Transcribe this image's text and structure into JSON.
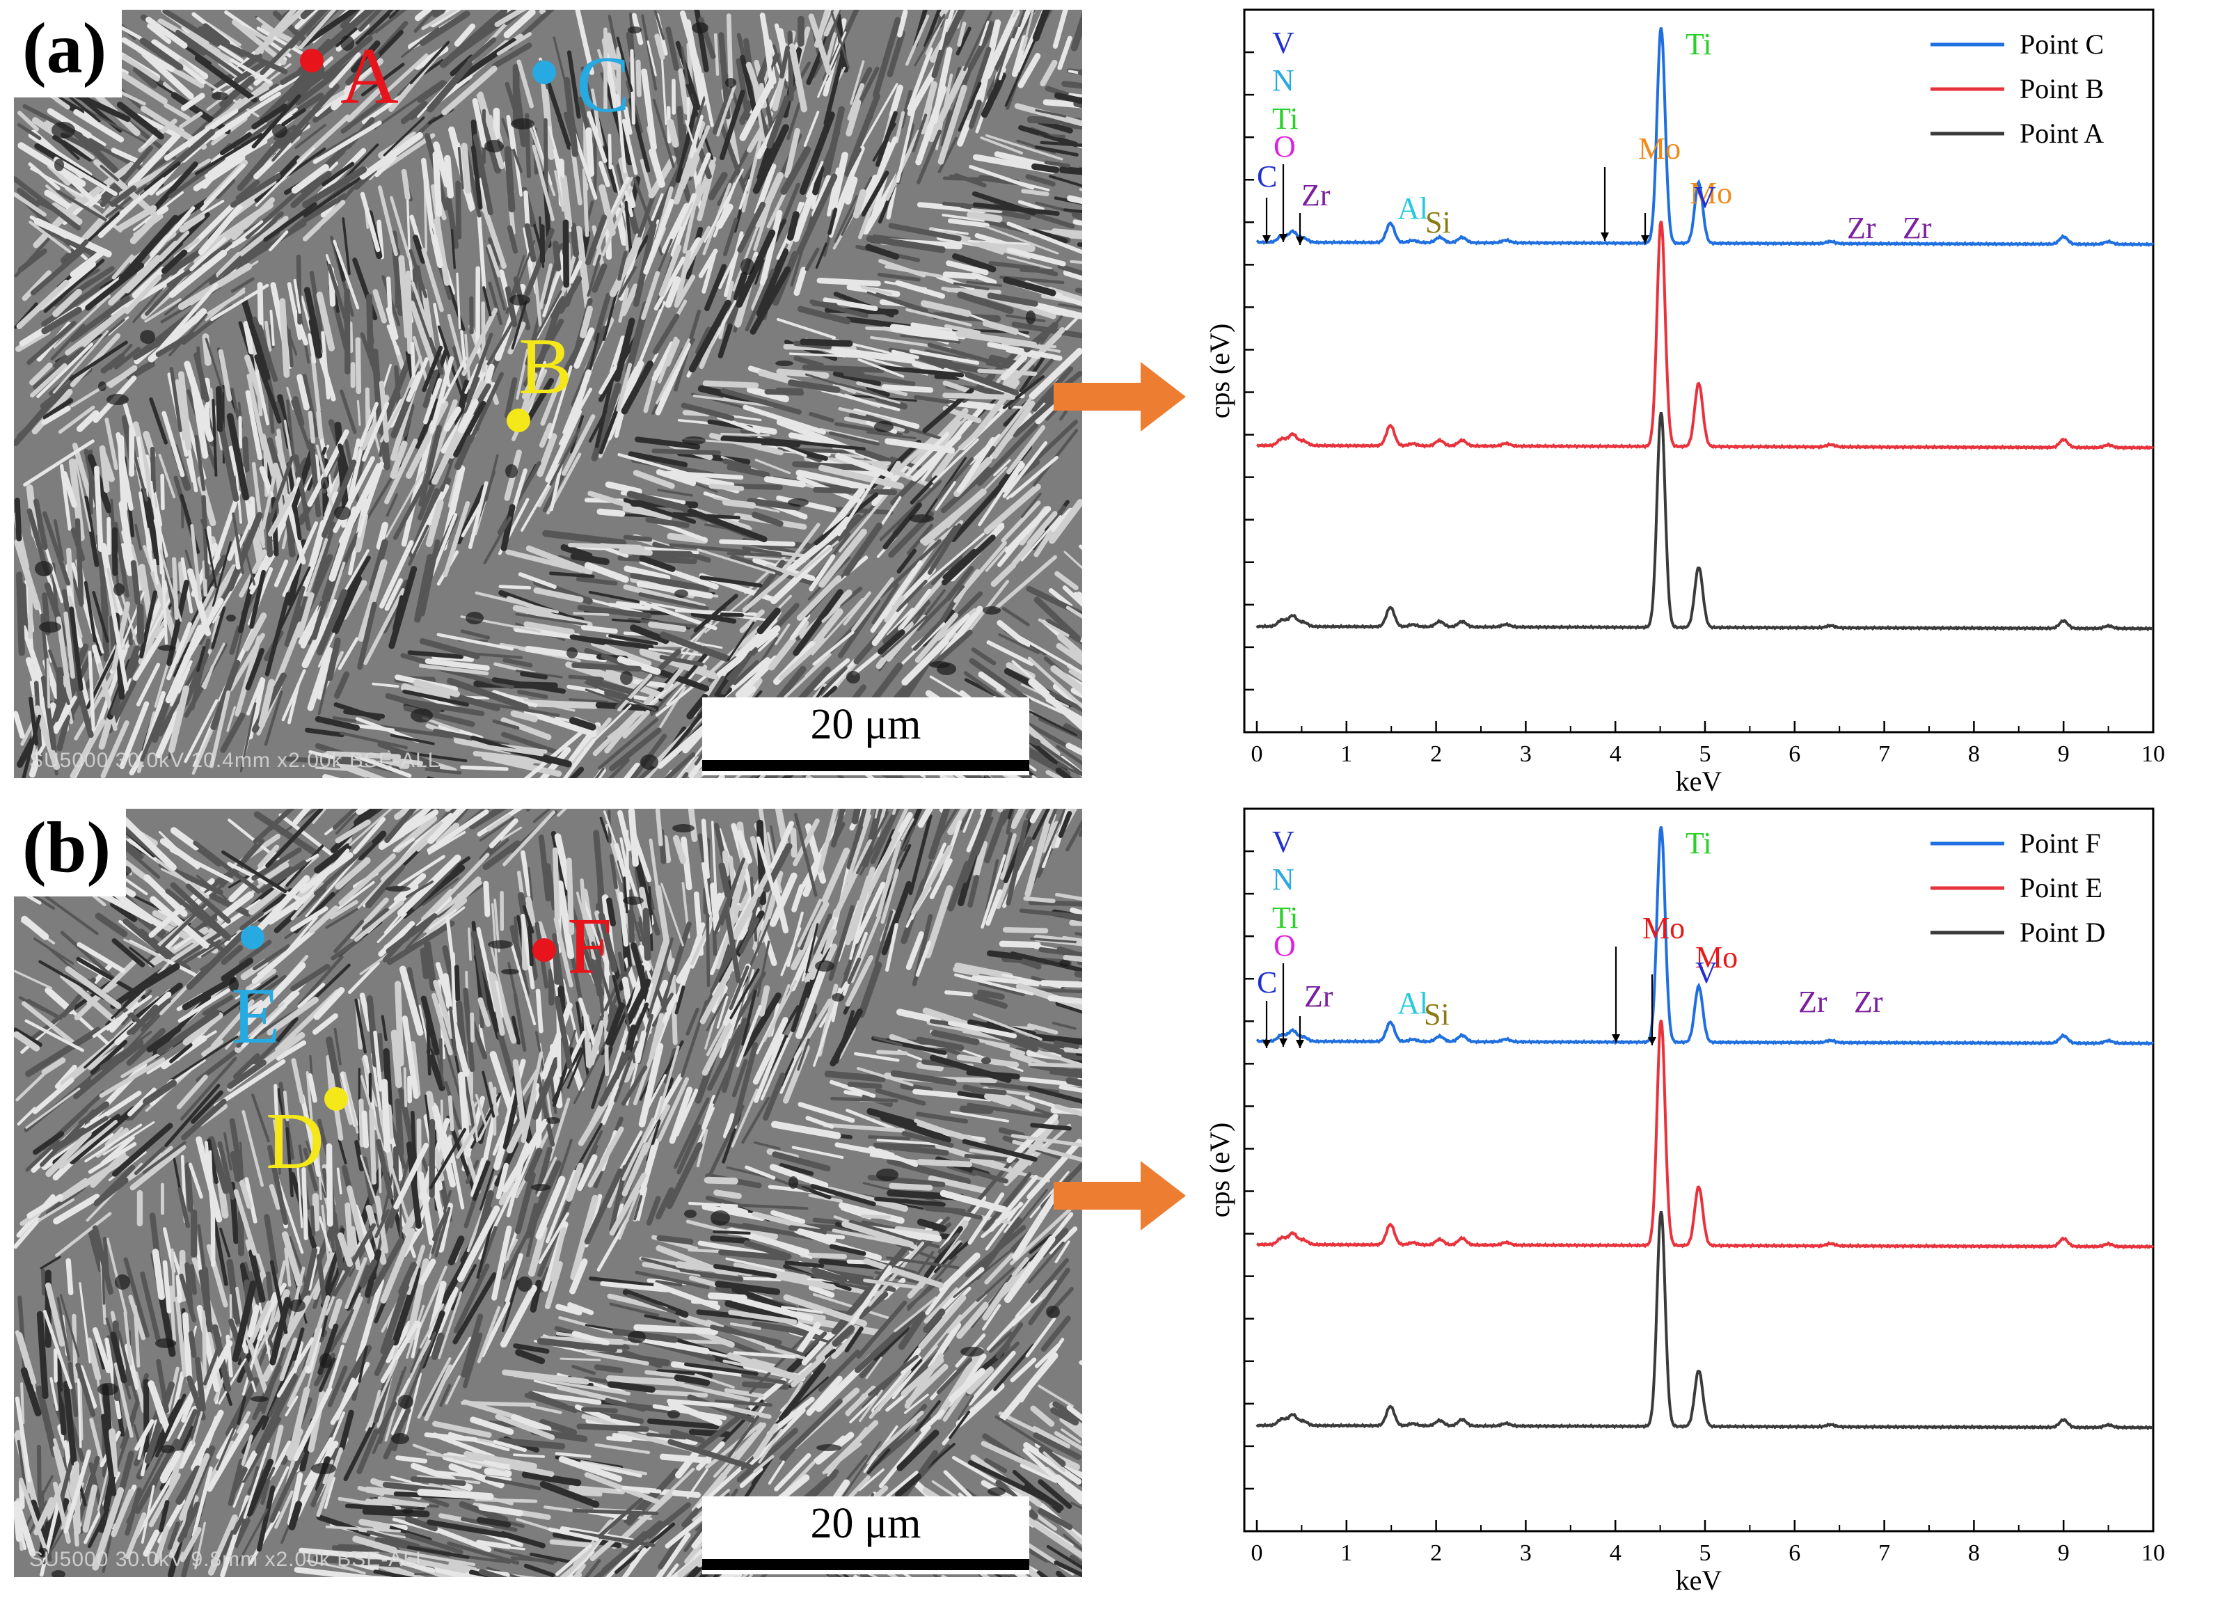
{
  "panels": [
    {
      "letter": "(a)",
      "scale_bar": "20 μm",
      "sem_info": "SU5000 30.0kV 10.4mm x2.00k BSE-ALL",
      "points": [
        {
          "label": "A",
          "color": "#e8141c"
        },
        {
          "label": "C",
          "color": "#27a9e1"
        },
        {
          "label": "B",
          "color": "#f4e81a"
        }
      ]
    },
    {
      "letter": "(b)",
      "scale_bar": "20 μm",
      "sem_info": "SU5000 30.0kV 9.8mm x2.00k BSE-ALL",
      "points": [
        {
          "label": "F",
          "color": "#e8141c"
        },
        {
          "label": "E",
          "color": "#27a9e1"
        },
        {
          "label": "D",
          "color": "#f4e81a"
        }
      ]
    }
  ],
  "chart_data": [
    {
      "type": "line",
      "xlabel": "keV",
      "ylabel": "cps (eV)",
      "xlim": [
        0,
        10
      ],
      "xticks": [
        0,
        1,
        2,
        3,
        4,
        5,
        6,
        7,
        8,
        9,
        10
      ],
      "legend_position": "top-right",
      "series": [
        {
          "name": "Point C",
          "color": "#1f6fe0",
          "baseline": 0.0
        },
        {
          "name": "Point B",
          "color": "#e8323c",
          "baseline": 0.0
        },
        {
          "name": "Point A",
          "color": "#3a3a3a",
          "baseline": 0.0
        }
      ],
      "peaks": [
        {
          "keV": 0.28,
          "h": 0.03
        },
        {
          "keV": 0.4,
          "h": 0.05
        },
        {
          "keV": 0.52,
          "h": 0.02
        },
        {
          "keV": 1.49,
          "h": 0.09
        },
        {
          "keV": 1.74,
          "h": 0.01
        },
        {
          "keV": 2.04,
          "h": 0.025
        },
        {
          "keV": 2.29,
          "h": 0.025
        },
        {
          "keV": 2.78,
          "h": 0.012
        },
        {
          "keV": 4.51,
          "h": 1.0
        },
        {
          "keV": 4.93,
          "h": 0.28
        },
        {
          "keV": 6.4,
          "h": 0.01
        },
        {
          "keV": 9.0,
          "h": 0.035
        },
        {
          "keV": 9.5,
          "h": 0.012
        }
      ],
      "annotations": [
        {
          "text": "V",
          "color": "#1f2fd0"
        },
        {
          "text": "N",
          "color": "#27a9e1"
        },
        {
          "text": "Ti",
          "color": "#2ad02a"
        },
        {
          "text": "O",
          "color": "#e020e0"
        },
        {
          "text": "C",
          "color": "#1f2fd0"
        },
        {
          "text": "Zr",
          "color": "#7a1fa0"
        },
        {
          "text": "Al",
          "color": "#27c9e1"
        },
        {
          "text": "Si",
          "color": "#8a7a10"
        },
        {
          "text": "Mo",
          "color": "#f08a1a"
        },
        {
          "text": "Mo",
          "color": "#f08a1a"
        },
        {
          "text": "Ti",
          "color": "#2ad02a"
        },
        {
          "text": "V",
          "color": "#1f2fd0"
        },
        {
          "text": "Zr",
          "color": "#7a1fa0"
        },
        {
          "text": "Zr",
          "color": "#7a1fa0"
        }
      ]
    },
    {
      "type": "line",
      "xlabel": "keV",
      "ylabel": "cps (eV)",
      "xlim": [
        0,
        10
      ],
      "xticks": [
        0,
        1,
        2,
        3,
        4,
        5,
        6,
        7,
        8,
        9,
        10
      ],
      "legend_position": "top-right",
      "series": [
        {
          "name": "Point F",
          "color": "#1f6fe0",
          "baseline": 0.0
        },
        {
          "name": "Point E",
          "color": "#e8323c",
          "baseline": 0.0
        },
        {
          "name": "Point D",
          "color": "#3a3a3a",
          "baseline": 0.0
        }
      ],
      "peaks": [
        {
          "keV": 0.28,
          "h": 0.03
        },
        {
          "keV": 0.4,
          "h": 0.05
        },
        {
          "keV": 0.52,
          "h": 0.02
        },
        {
          "keV": 1.49,
          "h": 0.09
        },
        {
          "keV": 1.74,
          "h": 0.01
        },
        {
          "keV": 2.04,
          "h": 0.025
        },
        {
          "keV": 2.29,
          "h": 0.03
        },
        {
          "keV": 2.78,
          "h": 0.012
        },
        {
          "keV": 4.51,
          "h": 1.0
        },
        {
          "keV": 4.93,
          "h": 0.26
        },
        {
          "keV": 6.4,
          "h": 0.01
        },
        {
          "keV": 9.0,
          "h": 0.035
        },
        {
          "keV": 9.5,
          "h": 0.012
        }
      ],
      "annotations": [
        {
          "text": "V",
          "color": "#1f2fd0"
        },
        {
          "text": "N",
          "color": "#27a9e1"
        },
        {
          "text": "Ti",
          "color": "#2ad02a"
        },
        {
          "text": "O",
          "color": "#e020e0"
        },
        {
          "text": "C",
          "color": "#1f2fd0"
        },
        {
          "text": "Zr",
          "color": "#7a1fa0"
        },
        {
          "text": "Al",
          "color": "#27c9e1"
        },
        {
          "text": "Si",
          "color": "#8a7a10"
        },
        {
          "text": "Mo",
          "color": "#e81818"
        },
        {
          "text": "Mo",
          "color": "#e81818"
        },
        {
          "text": "Ti",
          "color": "#2ad02a"
        },
        {
          "text": "V",
          "color": "#1f2fd0"
        },
        {
          "text": "Zr",
          "color": "#7a1fa0"
        },
        {
          "text": "Zr",
          "color": "#7a1fa0"
        }
      ]
    }
  ],
  "colors": {
    "arrow": "#ed7d31",
    "axis": "#000000"
  }
}
